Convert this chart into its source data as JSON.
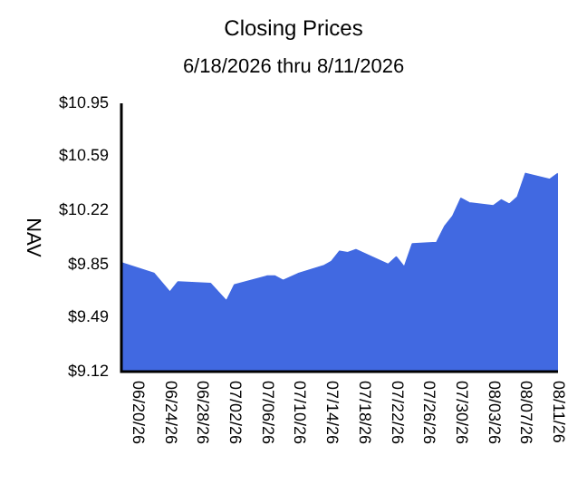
{
  "chart_data": {
    "type": "area",
    "title": "Closing Prices",
    "subtitle": "6/18/2026 thru 8/11/2026",
    "ylabel": "NAV",
    "x": [
      "2026-06-18",
      "2026-06-22",
      "2026-06-24",
      "2026-06-25",
      "2026-06-29",
      "2026-07-01",
      "2026-07-02",
      "2026-07-06",
      "2026-07-07",
      "2026-07-08",
      "2026-07-10",
      "2026-07-13",
      "2026-07-14",
      "2026-07-15",
      "2026-07-16",
      "2026-07-17",
      "2026-07-21",
      "2026-07-22",
      "2026-07-23",
      "2026-07-24",
      "2026-07-27",
      "2026-07-28",
      "2026-07-29",
      "2026-07-30",
      "2026-07-31",
      "2026-08-03",
      "2026-08-04",
      "2026-08-05",
      "2026-08-06",
      "2026-08-07",
      "2026-08-10",
      "2026-08-11"
    ],
    "series": [
      {
        "color": "#4169e1",
        "values": [
          9.86,
          9.79,
          9.66,
          9.73,
          9.72,
          9.6,
          9.71,
          9.77,
          9.77,
          9.74,
          9.79,
          9.84,
          9.87,
          9.94,
          9.93,
          9.95,
          9.85,
          9.9,
          9.83,
          9.99,
          10.0,
          10.11,
          10.18,
          10.3,
          10.27,
          10.25,
          10.29,
          10.26,
          10.31,
          10.47,
          10.43,
          10.47
        ]
      }
    ],
    "xlim": [
      "2026-06-18",
      "2026-08-11"
    ],
    "xticks": [
      {
        "value": "2026-06-20",
        "label": "06/20/26"
      },
      {
        "value": "2026-06-24",
        "label": "06/24/26"
      },
      {
        "value": "2026-06-28",
        "label": "06/28/26"
      },
      {
        "value": "2026-07-02",
        "label": "07/02/26"
      },
      {
        "value": "2026-07-06",
        "label": "07/06/26"
      },
      {
        "value": "2026-07-10",
        "label": "07/10/26"
      },
      {
        "value": "2026-07-14",
        "label": "07/14/26"
      },
      {
        "value": "2026-07-18",
        "label": "07/18/26"
      },
      {
        "value": "2026-07-22",
        "label": "07/22/26"
      },
      {
        "value": "2026-07-26",
        "label": "07/26/26"
      },
      {
        "value": "2026-07-30",
        "label": "07/30/26"
      },
      {
        "value": "2026-08-03",
        "label": "08/03/26"
      },
      {
        "value": "2026-08-07",
        "label": "08/07/26"
      },
      {
        "value": "2026-08-11",
        "label": "08/11/26"
      }
    ],
    "ylim": [
      9.12,
      10.95
    ],
    "yticks": [
      {
        "value": 9.12,
        "label": "$9.12"
      },
      {
        "value": 9.49,
        "label": "$9.49"
      },
      {
        "value": 9.85,
        "label": "$9.85"
      },
      {
        "value": 10.22,
        "label": "$10.22"
      },
      {
        "value": 10.59,
        "label": "$10.59"
      },
      {
        "value": 10.95,
        "label": "$10.95"
      }
    ],
    "grid": false,
    "legend": false
  }
}
